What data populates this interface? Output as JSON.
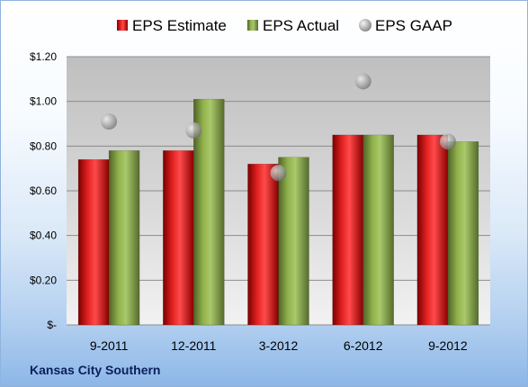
{
  "company": "Kansas City Southern",
  "chart_data": {
    "type": "bar",
    "categories": [
      "9-2011",
      "12-2011",
      "3-2012",
      "6-2012",
      "9-2012"
    ],
    "series": [
      {
        "name": "EPS Estimate",
        "kind": "bar",
        "color": "#c00000",
        "values": [
          0.74,
          0.78,
          0.72,
          0.85,
          0.85
        ]
      },
      {
        "name": "EPS Actual",
        "kind": "bar",
        "color": "#77933c",
        "values": [
          0.78,
          1.01,
          0.75,
          0.85,
          0.82
        ]
      },
      {
        "name": "EPS GAAP",
        "kind": "scatter",
        "color": "#a6a6a6",
        "values": [
          0.91,
          0.87,
          0.68,
          1.09,
          0.82
        ]
      }
    ],
    "ylim": [
      0,
      1.2
    ],
    "yticks": [
      0,
      0.2,
      0.4,
      0.6,
      0.8,
      1.0,
      1.2
    ],
    "ytick_labels": [
      "$-",
      "$0.20",
      "$0.40",
      "$0.60",
      "$0.80",
      "$1.00",
      "$1.20"
    ],
    "legend_position": "top",
    "grid": true,
    "title": "",
    "xlabel": "",
    "ylabel": ""
  }
}
